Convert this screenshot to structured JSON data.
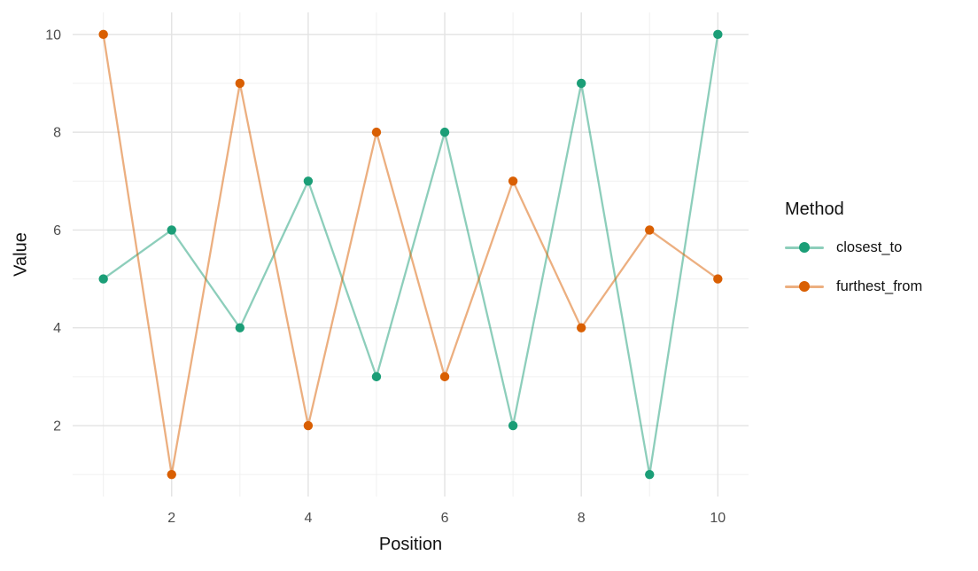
{
  "chart_data": {
    "type": "line",
    "title": "",
    "xlabel": "Position",
    "ylabel": "Value",
    "x": [
      1,
      2,
      3,
      4,
      5,
      6,
      7,
      8,
      9,
      10
    ],
    "series": [
      {
        "name": "closest_to",
        "color": "#1b9e77",
        "values": [
          5,
          6,
          4,
          7,
          3,
          8,
          2,
          9,
          1,
          10
        ]
      },
      {
        "name": "furthest_from",
        "color": "#d95f02",
        "values": [
          10,
          1,
          9,
          2,
          8,
          3,
          7,
          4,
          6,
          5
        ]
      }
    ],
    "x_ticks": [
      2,
      4,
      6,
      8,
      10
    ],
    "y_ticks": [
      2,
      4,
      6,
      8,
      10
    ],
    "x_minor_ticks": [
      1,
      3,
      5,
      7,
      9
    ],
    "y_minor_ticks": [
      1,
      3,
      5,
      7,
      9
    ],
    "xlim": [
      0.55,
      10.45
    ],
    "ylim": [
      0.55,
      10.45
    ],
    "grid": "major-and-minor",
    "legend": {
      "title": "Method",
      "position": "right",
      "entries": [
        "closest_to",
        "furthest_from"
      ]
    },
    "style": {
      "line_opacity": 0.5,
      "major_grid_color": "#e3e3e3",
      "minor_grid_color": "#f0f0f0",
      "tick_label_color": "#4d4d4d",
      "title_color": "#111111",
      "background": "#ffffff"
    }
  }
}
